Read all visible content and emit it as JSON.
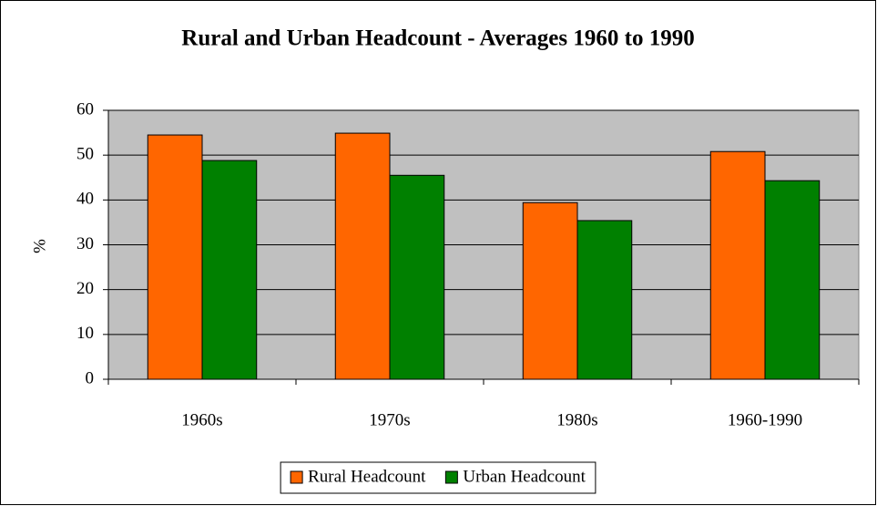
{
  "chart_data": {
    "type": "bar",
    "title": "Rural and Urban Headcount - Averages 1960 to 1990",
    "y_label": "%",
    "categories": [
      "1960s",
      "1970s",
      "1980s",
      "1960-1990"
    ],
    "series": [
      {
        "name": "Rural Headcount",
        "color": "#ff6600",
        "values": [
          54.5,
          54.9,
          39.4,
          50.8
        ]
      },
      {
        "name": "Urban Headcount",
        "color": "#008000",
        "values": [
          48.8,
          45.5,
          35.4,
          44.3
        ]
      }
    ],
    "ylim": [
      0,
      60
    ],
    "yticks": [
      0,
      10,
      20,
      30,
      40,
      50,
      60
    ],
    "grid": true,
    "legend": "bottom"
  }
}
